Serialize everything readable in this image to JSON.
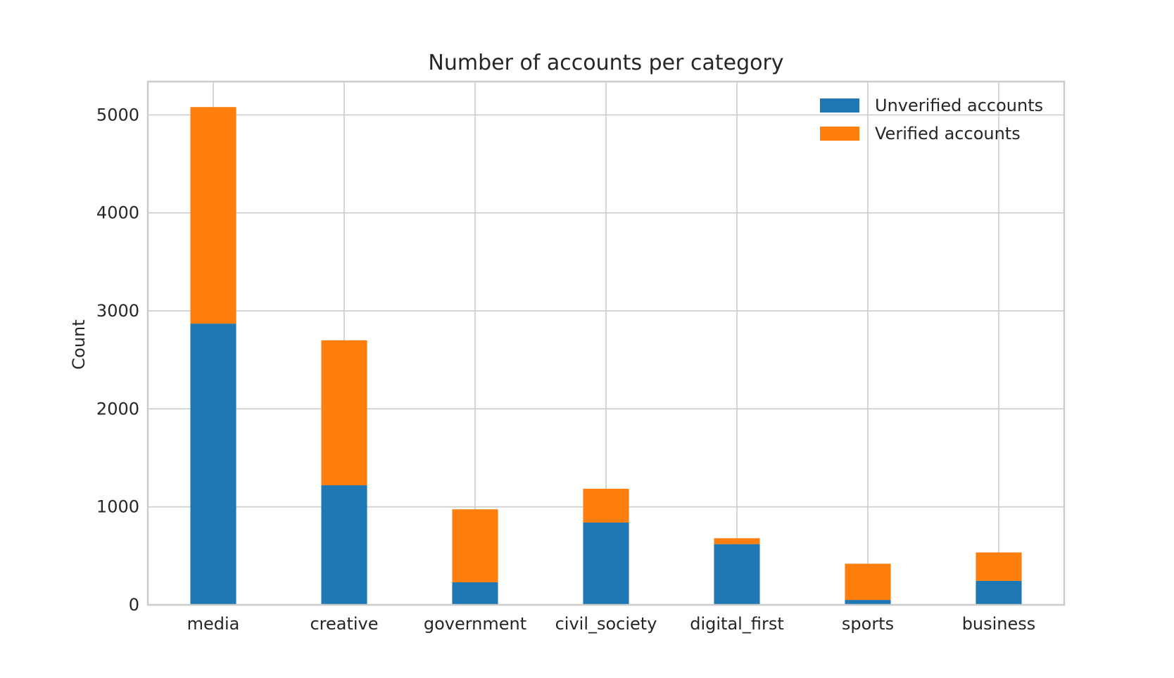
{
  "chart_data": {
    "type": "bar",
    "stacked": true,
    "title": "Number of accounts per category",
    "xlabel": "",
    "ylabel": "Count",
    "categories": [
      "media",
      "creative",
      "government",
      "civil_society",
      "digital_first",
      "sports",
      "business"
    ],
    "series": [
      {
        "name": "Unverified accounts",
        "color": "#1f77b4",
        "values": [
          2870,
          1220,
          230,
          840,
          620,
          50,
          245
        ]
      },
      {
        "name": "Verified accounts",
        "color": "#ff7f0e",
        "values": [
          2210,
          1480,
          745,
          345,
          60,
          370,
          290
        ]
      }
    ],
    "ylim": [
      0,
      5340
    ],
    "yticks": [
      0,
      1000,
      2000,
      3000,
      4000,
      5000
    ],
    "grid": true,
    "legend_position": "top-right"
  }
}
